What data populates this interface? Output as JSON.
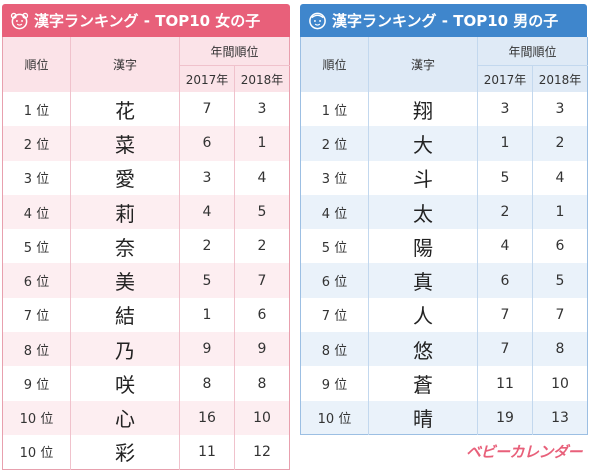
{
  "girls": {
    "title": "漢字ランキング - TOP10 女の子",
    "headers": {
      "rank": "順位",
      "kanji": "漢字",
      "group": "年間順位",
      "y1": "2017年",
      "y2": "2018年"
    },
    "rows": [
      {
        "rank": "1 位",
        "kanji": "花",
        "y2017": "7",
        "y2018": "3"
      },
      {
        "rank": "2 位",
        "kanji": "菜",
        "y2017": "6",
        "y2018": "1"
      },
      {
        "rank": "3 位",
        "kanji": "愛",
        "y2017": "3",
        "y2018": "4"
      },
      {
        "rank": "4 位",
        "kanji": "莉",
        "y2017": "4",
        "y2018": "5"
      },
      {
        "rank": "5 位",
        "kanji": "奈",
        "y2017": "2",
        "y2018": "2"
      },
      {
        "rank": "6 位",
        "kanji": "美",
        "y2017": "5",
        "y2018": "7"
      },
      {
        "rank": "7 位",
        "kanji": "結",
        "y2017": "1",
        "y2018": "6"
      },
      {
        "rank": "8 位",
        "kanji": "乃",
        "y2017": "9",
        "y2018": "9"
      },
      {
        "rank": "9 位",
        "kanji": "咲",
        "y2017": "8",
        "y2018": "8"
      },
      {
        "rank": "10 位",
        "kanji": "心",
        "y2017": "16",
        "y2018": "10"
      },
      {
        "rank": "10 位",
        "kanji": "彩",
        "y2017": "11",
        "y2018": "12"
      }
    ]
  },
  "boys": {
    "title": "漢字ランキング - TOP10 男の子",
    "headers": {
      "rank": "順位",
      "kanji": "漢字",
      "group": "年間順位",
      "y1": "2017年",
      "y2": "2018年"
    },
    "rows": [
      {
        "rank": "1 位",
        "kanji": "翔",
        "y2017": "3",
        "y2018": "3"
      },
      {
        "rank": "2 位",
        "kanji": "大",
        "y2017": "1",
        "y2018": "2"
      },
      {
        "rank": "3 位",
        "kanji": "斗",
        "y2017": "5",
        "y2018": "4"
      },
      {
        "rank": "4 位",
        "kanji": "太",
        "y2017": "2",
        "y2018": "1"
      },
      {
        "rank": "5 位",
        "kanji": "陽",
        "y2017": "4",
        "y2018": "6"
      },
      {
        "rank": "6 位",
        "kanji": "真",
        "y2017": "6",
        "y2018": "5"
      },
      {
        "rank": "7 位",
        "kanji": "人",
        "y2017": "7",
        "y2018": "7"
      },
      {
        "rank": "8 位",
        "kanji": "悠",
        "y2017": "7",
        "y2018": "8"
      },
      {
        "rank": "9 位",
        "kanji": "蒼",
        "y2017": "11",
        "y2018": "10"
      },
      {
        "rank": "10 位",
        "kanji": "晴",
        "y2017": "19",
        "y2018": "13"
      }
    ]
  },
  "logo": {
    "text": "ベビーカレンダー"
  },
  "colors": {
    "girls_accent": "#e8607a",
    "boys_accent": "#3f86cc",
    "girls_alt_row": "#fdeef1",
    "boys_alt_row": "#eaf2fa"
  },
  "icons": {
    "girls": "girl-face-icon",
    "boys": "boy-face-icon"
  }
}
